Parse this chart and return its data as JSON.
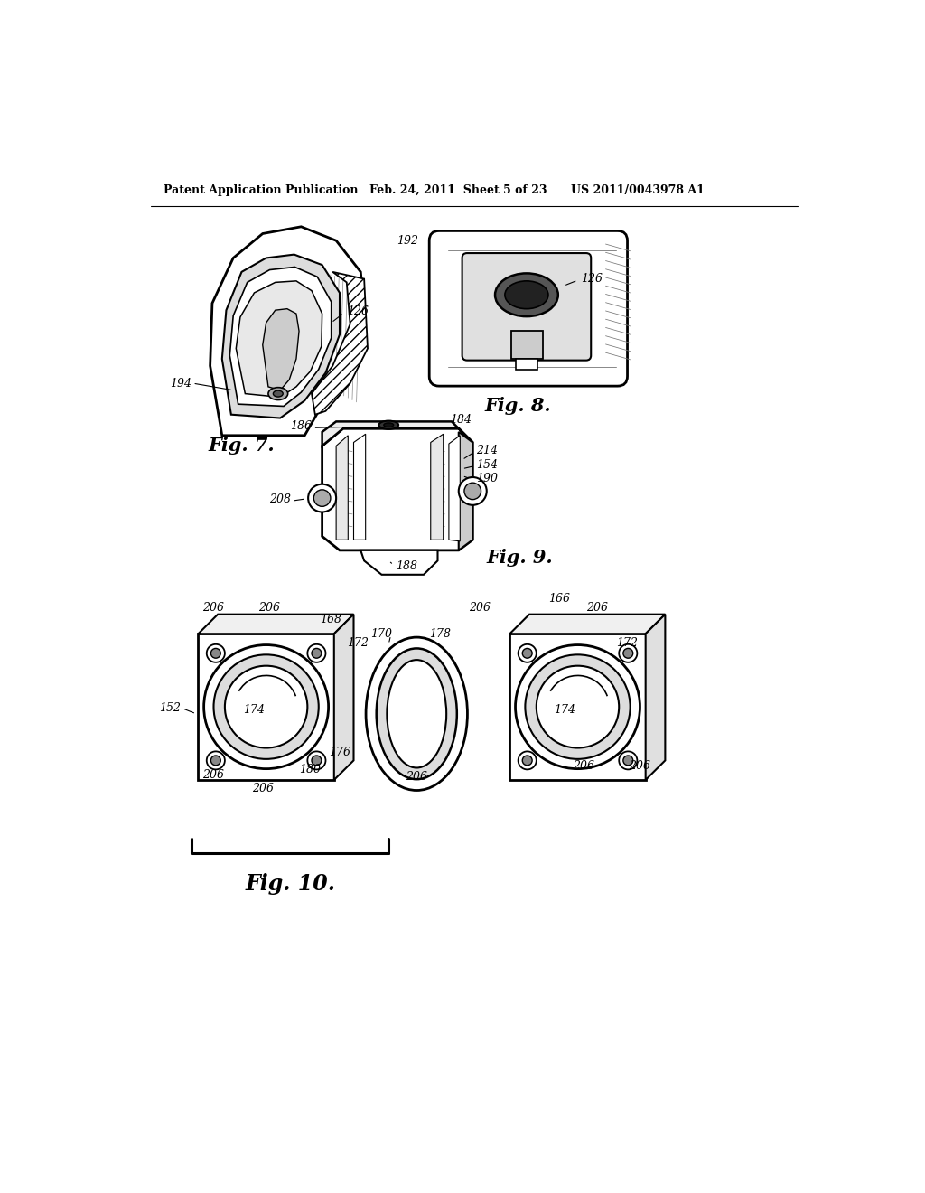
{
  "title_left": "Patent Application Publication",
  "title_middle": "Feb. 24, 2011  Sheet 5 of 23",
  "title_right": "US 2011/0043978 A1",
  "background_color": "#ffffff",
  "fig7_label": "Fig. 7.",
  "fig8_label": "Fig. 8.",
  "fig9_label": "Fig. 9.",
  "fig10_label": "Fig. 10."
}
